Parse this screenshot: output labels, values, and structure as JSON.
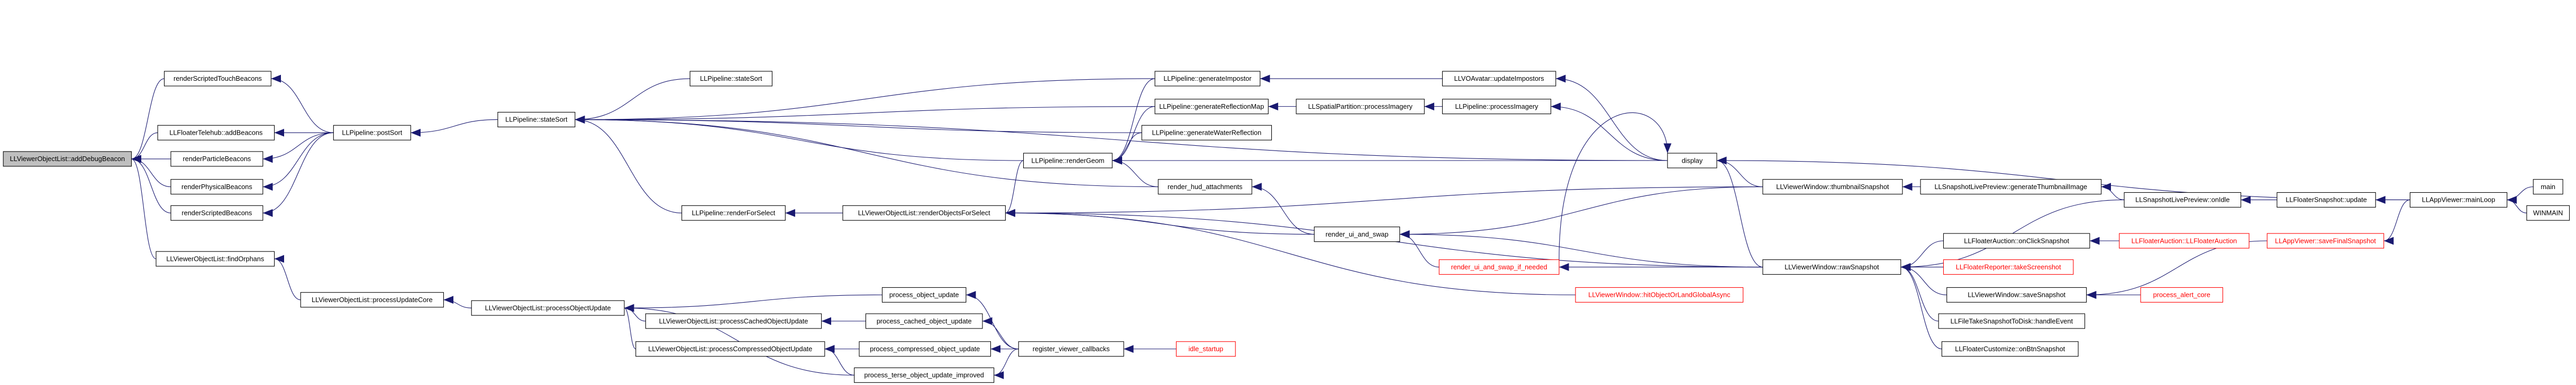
{
  "nodes": [
    {
      "label": "LLViewerObjectList::addDebugBeacon"
    },
    {
      "label": "renderScriptedTouchBeacons"
    },
    {
      "label": "LLFloaterTelehub::addBeacons"
    },
    {
      "label": "renderParticleBeacons"
    },
    {
      "label": "renderPhysicalBeacons"
    },
    {
      "label": "renderScriptedBeacons"
    },
    {
      "label": "LLViewerObjectList::findOrphans"
    },
    {
      "label": "LLPipeline::postSort"
    },
    {
      "label": "LLPipeline::stateSort"
    },
    {
      "label": "LLPipeline::stateSort"
    },
    {
      "label": "LLPipeline::renderForSelect"
    },
    {
      "label": "LLViewerObjectList::processUpdateCore"
    },
    {
      "label": "LLViewerObjectList::processObjectUpdate"
    },
    {
      "label": "LLViewerObjectList::processCachedObjectUpdate"
    },
    {
      "label": "LLViewerObjectList::processCompressedObjectUpdate"
    },
    {
      "label": "LLViewerObjectList::renderObjectsForSelect"
    },
    {
      "label": "LLPipeline::renderGeom"
    },
    {
      "label": "LLPipeline::generateImpostor"
    },
    {
      "label": "LLPipeline::generateReflectionMap"
    },
    {
      "label": "LLPipeline::generateWaterReflection"
    },
    {
      "label": "render_hud_attachments"
    },
    {
      "label": "render_ui_and_swap"
    },
    {
      "label": "render_ui_and_swap_if_needed"
    },
    {
      "label": "process_object_update"
    },
    {
      "label": "process_cached_object_update"
    },
    {
      "label": "process_compressed_object_update"
    },
    {
      "label": "process_terse_object_update_improved"
    },
    {
      "label": "register_viewer_callbacks"
    },
    {
      "label": "idle_startup"
    },
    {
      "label": "LLSpatialPartition::processImagery"
    },
    {
      "label": "LLVOAvatar::updateImpostors"
    },
    {
      "label": "LLPipeline::processImagery"
    },
    {
      "label": "display"
    },
    {
      "label": "LLViewerWindow::thumbnailSnapshot"
    },
    {
      "label": "LLSnapshotLivePreview::generateThumbnailImage"
    },
    {
      "label": "LLViewerWindow::hitObjectOrLandGlobalAsync"
    },
    {
      "label": "LLViewerWindow::rawSnapshot"
    },
    {
      "label": "LLFloaterAuction::onClickSnapshot"
    },
    {
      "label": "LLFloaterAuction::LLFloaterAuction"
    },
    {
      "label": "LLFloaterReporter::takeScreenshot"
    },
    {
      "label": "LLViewerWindow::saveSnapshot"
    },
    {
      "label": "process_alert_core"
    },
    {
      "label": "LLFileTakeSnapshotToDisk::handleEvent"
    },
    {
      "label": "LLFloaterCustomize::onBtnSnapshot"
    },
    {
      "label": "LLSnapshotLivePreview::onIdle"
    },
    {
      "label": "LLFloaterSnapshot::update"
    },
    {
      "label": "LLAppViewer::saveFinalSnapshot"
    },
    {
      "label": "LLAppViewer::mainLoop"
    },
    {
      "label": "main"
    },
    {
      "label": "WINMAIN"
    }
  ]
}
